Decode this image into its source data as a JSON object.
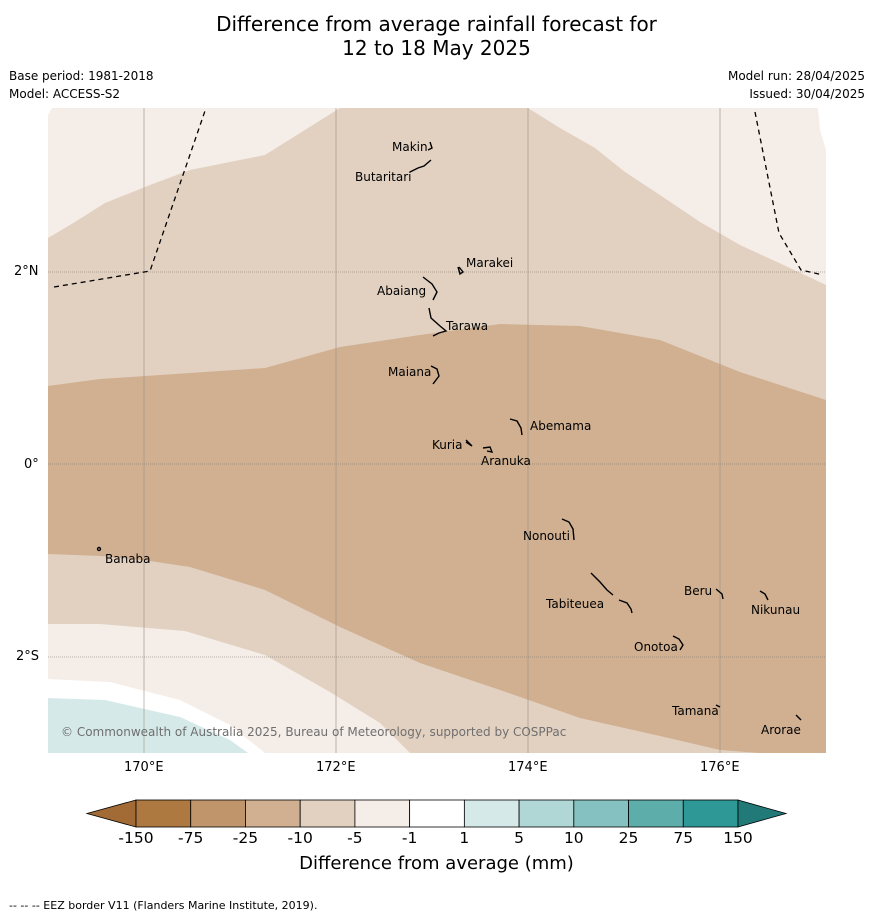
{
  "title_line1": "Difference from average rainfall forecast for",
  "title_line2": "12 to 18 May 2025",
  "base_period": "Base period: 1981-2018",
  "model": "Model: ACCESS-S2",
  "model_run": "Model run: 28/04/2025",
  "issued": "Issued: 30/04/2025",
  "lat_ticks": [
    "2°N",
    "0°",
    "2°S"
  ],
  "lon_ticks": [
    "170°E",
    "172°E",
    "174°E",
    "176°E"
  ],
  "places": [
    "Makin",
    "Butaritari",
    "Marakei",
    "Abaiang",
    "Tarawa",
    "Maiana",
    "Abemama",
    "Kuria",
    "Aranuka",
    "Nonouti",
    "Banaba",
    "Beru",
    "Nikunau",
    "Tabiteuea",
    "Onotoa",
    "Tamana",
    "Arorae"
  ],
  "copyright": "© Commonwealth of Australia 2025, Bureau of Meteorology, supported by COSPPac",
  "colorbar": {
    "labels": [
      "-150",
      "-75",
      "-25",
      "-10",
      "-5",
      "-1",
      "1",
      "5",
      "10",
      "25",
      "75",
      "150"
    ],
    "colors": [
      "#a26b35",
      "#ae7841",
      "#c0956c",
      "#d0b091",
      "#e2d1c1",
      "#f5ede8",
      "#ffffff",
      "#d6e9e9",
      "#b0d6d6",
      "#85c1c0",
      "#5dadab",
      "#2e9896",
      "#217a78"
    ],
    "title": "Difference from average (mm)"
  },
  "footer": "--  --  -- EEZ border V11 (Flanders Marine Institute, 2019)."
}
